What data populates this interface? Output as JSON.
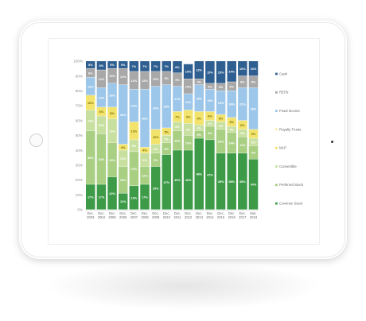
{
  "chart_data": {
    "type": "bar",
    "stacked": true,
    "categories": [
      [
        "Dec.",
        "2003"
      ],
      [
        "Dec.",
        "2004"
      ],
      [
        "Dec.",
        "2005"
      ],
      [
        "Dec.",
        "2006"
      ],
      [
        "Dec.",
        "2007"
      ],
      [
        "Dec.",
        "2008"
      ],
      [
        "Dec.",
        "2009"
      ],
      [
        "Dec.",
        "2010"
      ],
      [
        "Dec.",
        "2011"
      ],
      [
        "Dec.",
        "2012"
      ],
      [
        "Dec.",
        "2013"
      ],
      [
        "Dec.",
        "2014"
      ],
      [
        "Dec.",
        "2015"
      ],
      [
        "Dec.",
        "2016"
      ],
      [
        "Dec.",
        "2017"
      ],
      [
        "Mar.",
        "2018"
      ]
    ],
    "series": [
      {
        "name": "Common Stock",
        "color": "#3d9b48",
        "labelColor": "#ffffff",
        "values": [
          17,
          17,
          22,
          11,
          16,
          17,
          29,
          37,
          40,
          40,
          48,
          47,
          38,
          38,
          38,
          34
        ]
      },
      {
        "name": "Preferred Stock",
        "color": "#a9cf82",
        "labelColor": "#ffffff",
        "values": [
          36,
          34,
          23,
          18,
          23,
          12,
          9,
          8,
          13,
          10,
          5,
          9,
          16,
          14,
          11,
          9
        ]
      },
      {
        "name": "Convertible",
        "color": "#c8e09f",
        "labelColor": "#ffffff",
        "values": [
          14,
          12,
          16,
          11,
          8,
          9,
          6,
          5,
          6,
          8,
          4,
          4,
          5,
          4,
          5,
          5
        ]
      },
      {
        "name": "MLP",
        "color": "#f1e36c",
        "labelColor": "#7a6a00",
        "values": [
          10,
          6,
          8,
          4,
          12,
          4,
          10,
          5,
          7,
          9,
          9,
          6,
          5,
          6,
          6,
          6
        ]
      },
      {
        "name": "Royalty Trusts",
        "color": "#f7eeaa",
        "labelColor": "#7a6a00",
        "values": [
          0,
          0,
          0,
          0,
          0,
          0,
          0,
          0,
          0,
          0,
          0,
          0,
          0,
          0,
          0,
          0
        ]
      },
      {
        "name": "Fixed Income",
        "color": "#9cc7ea",
        "labelColor": "#ffffff",
        "values": [
          12,
          13,
          16,
          40,
          22,
          39,
          29,
          29,
          17,
          11,
          18,
          15,
          16,
          18,
          22,
          28
        ]
      },
      {
        "name": "REITs",
        "color": "#a8a8a8",
        "labelColor": "#ffffff",
        "values": [
          6,
          12,
          10,
          11,
          12,
          12,
          10,
          9,
          9,
          10,
          4,
          4,
          5,
          6,
          8,
          8
        ]
      },
      {
        "name": "Cash",
        "color": "#2f5f90",
        "labelColor": "#ffffff",
        "values": [
          5,
          6,
          5,
          5,
          7,
          7,
          7,
          7,
          8,
          10,
          12,
          15,
          15,
          14,
          10,
          10
        ]
      }
    ],
    "ylim": [
      0,
      100
    ],
    "yticks": [
      "0%",
      "10%",
      "20%",
      "30%",
      "40%",
      "50%",
      "60%",
      "70%",
      "80%",
      "90%",
      "100%"
    ],
    "legend_position": "right",
    "legend_order": [
      "Cash",
      "REITs",
      "Fixed Income",
      "Royalty Trusts",
      "MLP",
      "Convertible",
      "Preferred Stock",
      "Common Stock"
    ]
  }
}
